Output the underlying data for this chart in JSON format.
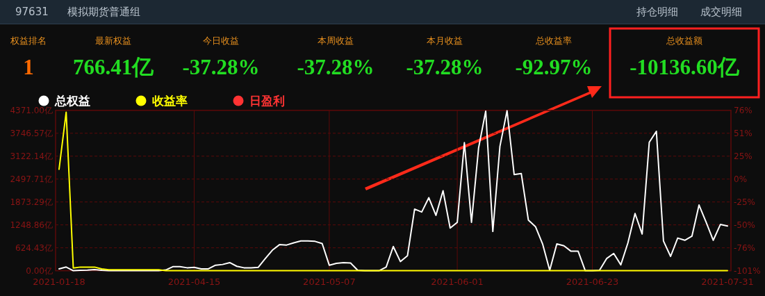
{
  "chart_data": [
    {
      "type": "other",
      "title": "97631",
      "subtitle": "模拟期货普通组",
      "annotations": [
        "持仓明细",
        "成交明细"
      ],
      "categories": [
        "权益排名",
        "最新权益",
        "今日收益",
        "本周收益",
        "本月收益",
        "总收益率",
        "总收益额"
      ],
      "value_labels": [
        "1",
        "766.41亿",
        "-37.28%",
        "-37.28%",
        "-37.28%",
        "-92.97%",
        "-10136.60亿"
      ],
      "colors": [
        "#ff6a00",
        "#22dd22",
        "#22dd22",
        "#22dd22",
        "#22dd22",
        "#22dd22",
        "#22dd22"
      ]
    },
    {
      "type": "line",
      "grid": true,
      "legend": "top left",
      "marker": "none",
      "line_style": "solid",
      "categories": [
        "2021-01-18",
        null,
        null,
        null,
        null,
        null,
        null,
        null,
        null,
        null,
        null,
        null,
        null,
        null,
        null,
        null,
        null,
        null,
        null,
        "2021-04-15",
        null,
        null,
        null,
        null,
        null,
        null,
        null,
        null,
        null,
        null,
        null,
        null,
        null,
        null,
        null,
        null,
        null,
        null,
        "2021-05-07",
        null,
        null,
        null,
        null,
        null,
        null,
        null,
        null,
        null,
        null,
        null,
        null,
        null,
        null,
        null,
        null,
        null,
        "2021-06-01",
        null,
        null,
        null,
        null,
        null,
        null,
        null,
        null,
        null,
        null,
        null,
        null,
        null,
        null,
        null,
        null,
        null,
        null,
        "2021-06-23",
        null,
        null,
        null,
        null,
        null,
        null,
        null,
        null,
        null,
        null,
        null,
        null,
        null,
        null,
        null,
        null,
        null,
        null,
        "2021-07-31"
      ],
      "ylim": [
        0,
        4371
      ],
      "yticks": [
        {
          "value": 0,
          "label": "0.00亿"
        },
        {
          "value": 624.43,
          "label": "624.43亿"
        },
        {
          "value": 1248.86,
          "label": "1248.86亿"
        },
        {
          "value": 1873.29,
          "label": "1873.29亿"
        },
        {
          "value": 2497.71,
          "label": "2497.71亿"
        },
        {
          "value": 3122.14,
          "label": "3122.14亿"
        },
        {
          "value": 3746.57,
          "label": "3746.57亿"
        },
        {
          "value": 4371,
          "label": "4371.00亿"
        }
      ],
      "y2lim": [
        -101,
        76
      ],
      "y2ticks": [
        {
          "value": -101,
          "label": "-101%"
        },
        {
          "value": -75.71,
          "label": "-76%"
        },
        {
          "value": -50.43,
          "label": "-50%"
        },
        {
          "value": -25.14,
          "label": "-25%"
        },
        {
          "value": 0.14,
          "label": "0%"
        },
        {
          "value": 25.43,
          "label": "25%"
        },
        {
          "value": 50.71,
          "label": "51%"
        },
        {
          "value": 76,
          "label": "76%"
        }
      ],
      "series": [
        {
          "name": "总权益",
          "color": "#ffffff",
          "values": [
            50,
            100,
            0,
            10,
            15,
            30,
            10,
            0,
            0,
            0,
            0,
            0,
            0,
            0,
            0,
            20,
            110,
            110,
            80,
            90,
            50,
            50,
            150,
            170,
            220,
            120,
            80,
            80,
            90,
            330,
            560,
            710,
            700,
            760,
            810,
            810,
            800,
            740,
            150,
            200,
            220,
            210,
            10,
            0,
            0,
            0,
            100,
            660,
            250,
            410,
            1680,
            1600,
            1990,
            1510,
            2180,
            1160,
            1320,
            3490,
            1320,
            3350,
            4350,
            1070,
            3390,
            4360,
            2620,
            2650,
            1380,
            1200,
            730,
            10,
            730,
            680,
            530,
            530,
            0,
            0,
            10,
            330,
            470,
            160,
            760,
            1560,
            1000,
            3500,
            3800,
            810,
            390,
            890,
            830,
            940,
            1790,
            1320,
            830,
            1260,
            1220
          ]
        },
        {
          "name": "收益率",
          "color": "#ffff00",
          "axis": "y2",
          "values": [
            11,
            74,
            -98,
            -97,
            -97,
            -97,
            -99,
            -100,
            -100,
            -100,
            -100,
            -100,
            -100,
            -100,
            -100,
            -101,
            -101,
            -101,
            -101,
            -101,
            -101,
            -101,
            -101,
            -101,
            -101,
            -101,
            -101,
            -101,
            -101,
            -101,
            -101,
            -101,
            -101,
            -101,
            -101,
            -101,
            -101,
            -101,
            -101,
            -101,
            -101,
            -101,
            -101,
            -101,
            -101,
            -101,
            -101,
            -101,
            -101,
            -101,
            -101,
            -101,
            -101,
            -101,
            -101,
            -101,
            -101,
            -101,
            -101,
            -101,
            -101,
            -101,
            -101,
            -101,
            -101,
            -101,
            -101,
            -101,
            -101,
            -101,
            -101,
            -101,
            -101,
            -101,
            -101,
            -101,
            -101,
            -101,
            -101,
            -101,
            -101,
            -101,
            -101,
            -101,
            -101,
            -101,
            -101,
            -101,
            -101,
            -101,
            -101,
            -101,
            -101,
            -101,
            -101
          ]
        },
        {
          "name": "日盈利",
          "color": "#ff3333",
          "values": [
            null,
            null,
            null,
            null,
            null,
            null,
            null,
            null,
            null,
            null,
            null,
            null,
            null,
            null,
            null,
            null,
            null,
            null,
            null,
            null,
            null,
            null,
            null,
            null,
            null,
            null,
            null,
            null,
            null,
            null,
            null,
            null,
            null,
            null,
            null,
            null,
            null,
            null,
            null,
            null,
            null,
            null,
            null,
            null,
            null,
            null,
            null,
            null,
            null,
            null,
            null,
            null,
            null,
            null,
            null,
            null,
            null,
            null,
            null,
            null,
            null,
            null,
            null,
            null,
            null,
            null,
            null,
            null,
            null,
            null,
            null,
            null,
            null,
            null,
            null,
            null,
            null,
            null,
            null,
            null,
            null,
            null,
            null,
            null,
            null,
            null,
            null,
            null,
            null,
            null,
            null,
            null,
            null,
            null,
            null
          ]
        }
      ]
    }
  ]
}
